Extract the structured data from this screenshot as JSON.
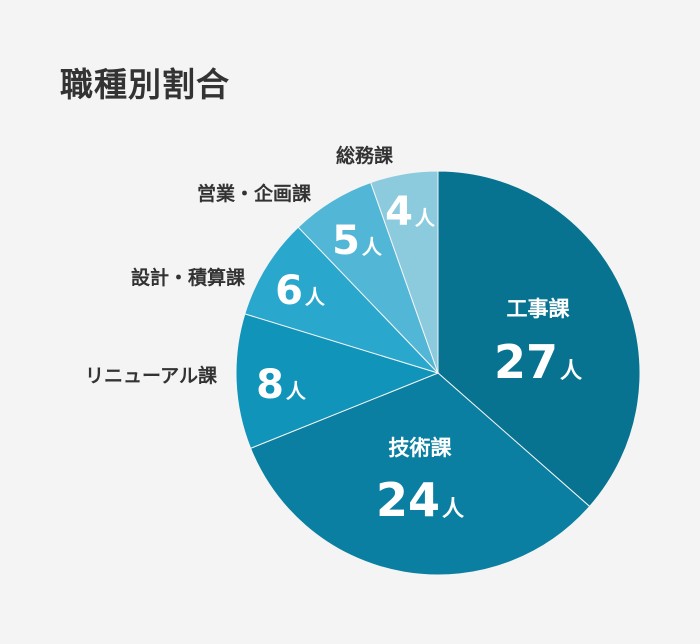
{
  "title": "職種別割合",
  "colors": {
    "background": "#f4f4f4",
    "title_text": "#333333",
    "outside_label_text": "#333333",
    "inside_label_text": "#ffffff",
    "slice_border": "#f4f4f4"
  },
  "chart_data": {
    "type": "pie",
    "title": "職種別割合",
    "unit": "人",
    "direction": "clockwise",
    "start": "top",
    "slices": [
      {
        "label": "工事課",
        "value": 27,
        "color": "#077391",
        "label_position": "inside"
      },
      {
        "label": "技術課",
        "value": 24,
        "color": "#0a7fa1",
        "label_position": "inside"
      },
      {
        "label": "リニューアル課",
        "value": 8,
        "color": "#1094b9",
        "label_position": "outside"
      },
      {
        "label": "設計・積算課",
        "value": 6,
        "color": "#2aa7cc",
        "label_position": "outside"
      },
      {
        "label": "営業・企画課",
        "value": 5,
        "color": "#52b6d6",
        "label_position": "outside"
      },
      {
        "label": "総務課",
        "value": 4,
        "color": "#8ccbde",
        "label_position": "outside"
      }
    ]
  }
}
